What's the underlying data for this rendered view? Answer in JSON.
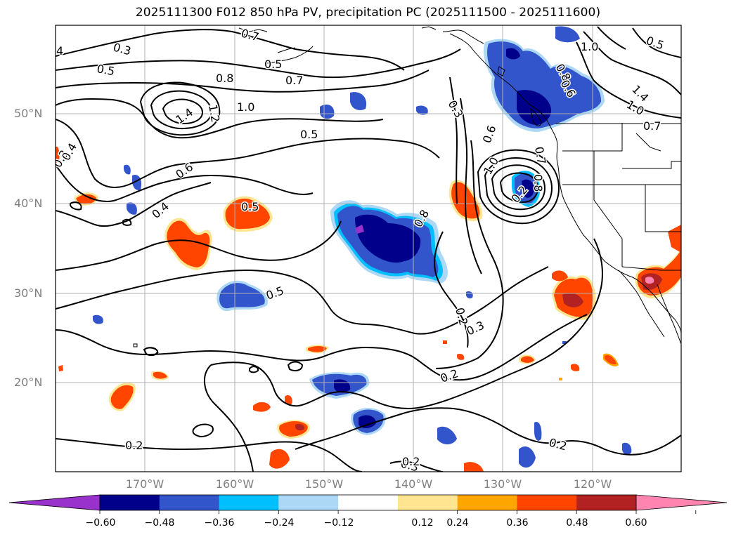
{
  "title": "2025111300 F012 850 hPa PV, precipitation PC (2025111500 - 2025111600)",
  "map": {
    "lat_labels": [
      "50°N",
      "40°N",
      "30°N",
      "20°N"
    ],
    "lon_labels": [
      "170°W",
      "160°W",
      "150°W",
      "140°W",
      "130°W",
      "120°W"
    ],
    "contour_labels": [
      "0.3",
      "4",
      "0.5",
      "0.8",
      "1.4",
      "1.2",
      "1.0",
      "0.5",
      "0.7",
      "0.7",
      "0.5",
      "0.6",
      "0.4",
      "0.5",
      "0.5",
      "0.3",
      "0.4",
      "0.3",
      "0.6",
      "1.0",
      "0.7",
      "0.8",
      "0.2",
      "0.3",
      "0.3",
      "0.2",
      "0.2",
      "0.2",
      "0.2",
      "1.0",
      "0.8",
      "0.6",
      "0.8",
      "0.5",
      "1.4",
      "1.0",
      "0.7",
      "0.2"
    ],
    "colors": {
      "neg_extreme": "#9932cc",
      "neg_0_60": "#00008b",
      "neg_0_48": "#3355cc",
      "neg_0_36": "#00bfff",
      "neg_0_24": "#add8f5",
      "pos_0_12": "#ffe58f",
      "pos_0_24": "#ffa500",
      "pos_0_36": "#ff4500",
      "pos_0_48": "#b22222",
      "pos_extreme": "#ff85b0"
    }
  },
  "colorbar": {
    "ticks": [
      "−0.60",
      "−0.48",
      "−0.36",
      "−0.24",
      "−0.12",
      "0.12",
      "0.24",
      "0.36",
      "0.48",
      "0.60"
    ],
    "colors": [
      "#9932cc",
      "#00008b",
      "#3355cc",
      "#00bfff",
      "#add8f5",
      "#ffffff",
      "#ffe58f",
      "#ffa500",
      "#ff4500",
      "#b22222",
      "#ff85b0"
    ]
  }
}
